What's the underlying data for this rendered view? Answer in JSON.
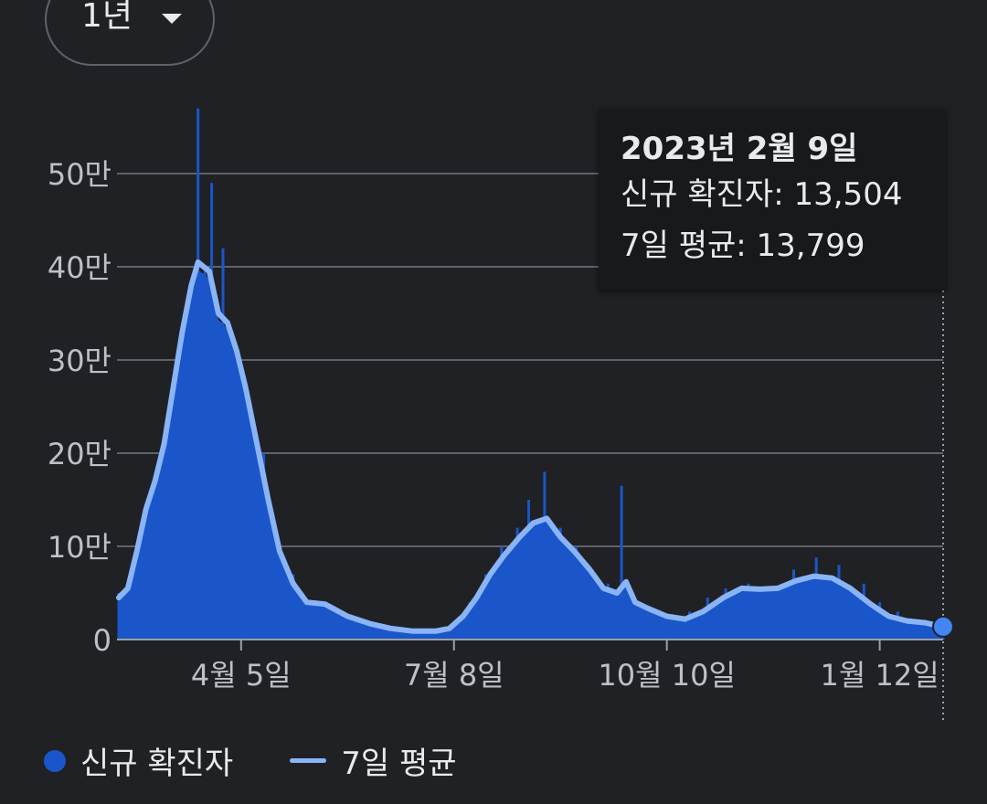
{
  "range_select": {
    "label": "1년"
  },
  "tooltip": {
    "date": "2023년 2월 9일",
    "new_cases_label": "신규 확진자",
    "new_cases_value": "13,504",
    "avg_label": "7일 평균",
    "avg_value": "13,799"
  },
  "legend": {
    "new_cases": "신규 확진자",
    "avg": "7일 평균"
  },
  "colors": {
    "bars": "#1a56c9",
    "avg_line": "#8ab4f8",
    "marker": "#4285f4",
    "grid": "#5f6368"
  },
  "chart_data": {
    "type": "bar",
    "title": "",
    "xlabel": "",
    "ylabel": "",
    "ylim": [
      0,
      580000
    ],
    "yticks": [
      {
        "value": 0,
        "label": "0"
      },
      {
        "value": 100000,
        "label": "10만"
      },
      {
        "value": 200000,
        "label": "20만"
      },
      {
        "value": 300000,
        "label": "30만"
      },
      {
        "value": 400000,
        "label": "40만"
      },
      {
        "value": 500000,
        "label": "50만"
      }
    ],
    "xrange": [
      "2022-02-10",
      "2023-02-09"
    ],
    "xticks": [
      {
        "date": "2022-04-05",
        "label": "4월 5일"
      },
      {
        "date": "2022-07-08",
        "label": "7월 8일"
      },
      {
        "date": "2022-10-10",
        "label": "10월 10일"
      },
      {
        "date": "2023-01-12",
        "label": "1월 12일"
      }
    ],
    "series": [
      {
        "name": "신규 확진자",
        "kind": "bar",
        "points": [
          [
            "2022-02-10",
            50000
          ],
          [
            "2022-02-20",
            100000
          ],
          [
            "2022-02-28",
            140000
          ],
          [
            "2022-03-05",
            220000
          ],
          [
            "2022-03-10",
            330000
          ],
          [
            "2022-03-15",
            380000
          ],
          [
            "2022-03-17",
            570000
          ],
          [
            "2022-03-20",
            400000
          ],
          [
            "2022-03-23",
            490000
          ],
          [
            "2022-03-28",
            420000
          ],
          [
            "2022-04-02",
            300000
          ],
          [
            "2022-04-08",
            250000
          ],
          [
            "2022-04-15",
            200000
          ],
          [
            "2022-04-20",
            110000
          ],
          [
            "2022-04-28",
            70000
          ],
          [
            "2022-05-10",
            40000
          ],
          [
            "2022-05-25",
            20000
          ],
          [
            "2022-06-10",
            10000
          ],
          [
            "2022-06-25",
            7000
          ],
          [
            "2022-07-08",
            15000
          ],
          [
            "2022-07-15",
            40000
          ],
          [
            "2022-07-22",
            70000
          ],
          [
            "2022-07-29",
            100000
          ],
          [
            "2022-08-05",
            120000
          ],
          [
            "2022-08-10",
            150000
          ],
          [
            "2022-08-17",
            180000
          ],
          [
            "2022-08-24",
            120000
          ],
          [
            "2022-08-31",
            100000
          ],
          [
            "2022-09-07",
            70000
          ],
          [
            "2022-09-14",
            60000
          ],
          [
            "2022-09-20",
            165000
          ],
          [
            "2022-09-28",
            40000
          ],
          [
            "2022-10-05",
            25000
          ],
          [
            "2022-10-12",
            20000
          ],
          [
            "2022-10-20",
            30000
          ],
          [
            "2022-10-28",
            45000
          ],
          [
            "2022-11-05",
            55000
          ],
          [
            "2022-11-15",
            60000
          ],
          [
            "2022-11-25",
            55000
          ],
          [
            "2022-12-05",
            75000
          ],
          [
            "2022-12-15",
            88000
          ],
          [
            "2022-12-25",
            80000
          ],
          [
            "2023-01-05",
            60000
          ],
          [
            "2023-01-12",
            40000
          ],
          [
            "2023-01-20",
            30000
          ],
          [
            "2023-01-30",
            20000
          ],
          [
            "2023-02-09",
            13504
          ]
        ]
      },
      {
        "name": "7일 평균",
        "kind": "line",
        "points": [
          [
            "2022-02-10",
            45000
          ],
          [
            "2022-02-14",
            55000
          ],
          [
            "2022-02-18",
            95000
          ],
          [
            "2022-02-22",
            140000
          ],
          [
            "2022-02-26",
            170000
          ],
          [
            "2022-03-02",
            210000
          ],
          [
            "2022-03-06",
            270000
          ],
          [
            "2022-03-10",
            330000
          ],
          [
            "2022-03-14",
            380000
          ],
          [
            "2022-03-17",
            405000
          ],
          [
            "2022-03-22",
            395000
          ],
          [
            "2022-03-26",
            350000
          ],
          [
            "2022-03-30",
            340000
          ],
          [
            "2022-04-03",
            310000
          ],
          [
            "2022-04-07",
            270000
          ],
          [
            "2022-04-12",
            210000
          ],
          [
            "2022-04-17",
            150000
          ],
          [
            "2022-04-22",
            95000
          ],
          [
            "2022-04-28",
            60000
          ],
          [
            "2022-05-04",
            40000
          ],
          [
            "2022-05-12",
            38000
          ],
          [
            "2022-05-22",
            25000
          ],
          [
            "2022-06-01",
            17000
          ],
          [
            "2022-06-10",
            12000
          ],
          [
            "2022-06-20",
            9000
          ],
          [
            "2022-06-30",
            9000
          ],
          [
            "2022-07-06",
            12000
          ],
          [
            "2022-07-12",
            25000
          ],
          [
            "2022-07-18",
            45000
          ],
          [
            "2022-07-24",
            70000
          ],
          [
            "2022-07-30",
            90000
          ],
          [
            "2022-08-06",
            110000
          ],
          [
            "2022-08-12",
            125000
          ],
          [
            "2022-08-18",
            130000
          ],
          [
            "2022-08-24",
            110000
          ],
          [
            "2022-08-30",
            95000
          ],
          [
            "2022-09-06",
            75000
          ],
          [
            "2022-09-12",
            55000
          ],
          [
            "2022-09-18",
            50000
          ],
          [
            "2022-09-22",
            62000
          ],
          [
            "2022-09-26",
            40000
          ],
          [
            "2022-10-02",
            33000
          ],
          [
            "2022-10-10",
            25000
          ],
          [
            "2022-10-18",
            22000
          ],
          [
            "2022-10-26",
            30000
          ],
          [
            "2022-11-04",
            45000
          ],
          [
            "2022-11-12",
            55000
          ],
          [
            "2022-11-20",
            54000
          ],
          [
            "2022-11-28",
            55000
          ],
          [
            "2022-12-06",
            63000
          ],
          [
            "2022-12-14",
            68000
          ],
          [
            "2022-12-22",
            66000
          ],
          [
            "2022-12-30",
            55000
          ],
          [
            "2023-01-08",
            38000
          ],
          [
            "2023-01-16",
            25000
          ],
          [
            "2023-01-24",
            20000
          ],
          [
            "2023-02-01",
            18000
          ],
          [
            "2023-02-09",
            13799
          ]
        ]
      }
    ],
    "grid": true,
    "legend_position": "bottom-left",
    "highlight": {
      "date": "2023-02-09",
      "value": 13799
    }
  }
}
